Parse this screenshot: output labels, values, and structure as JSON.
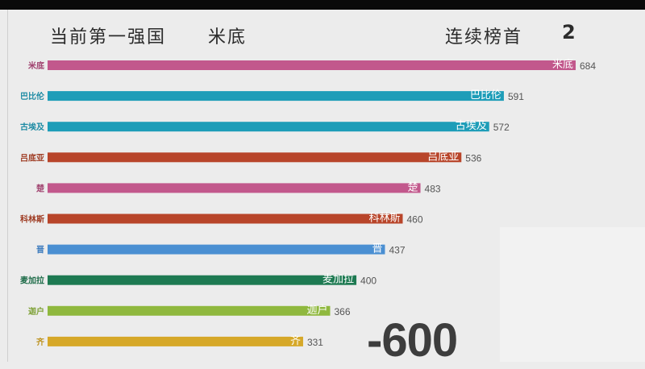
{
  "header": {
    "leader_label": "当前第一强国",
    "leader_name": "米底",
    "streak_label": "连续榜首",
    "streak_count": "2"
  },
  "year": "-600",
  "chart_data": {
    "type": "bar",
    "orientation": "horizontal",
    "categories": [
      "米底",
      "巴比伦",
      "古埃及",
      "吕底亚",
      "楚",
      "科林斯",
      "晋",
      "麦加拉",
      "迦户",
      "齐"
    ],
    "values": [
      684,
      591,
      572,
      536,
      483,
      460,
      437,
      400,
      366,
      331
    ],
    "colors": [
      "#c2588c",
      "#1e9db8",
      "#1e9db8",
      "#b8452a",
      "#c2588c",
      "#b8452a",
      "#4a8fd2",
      "#1e7a52",
      "#8fb83e",
      "#d6a829"
    ],
    "label_colors": [
      "#a0436f",
      "#1c8aa3",
      "#1c8aa3",
      "#9e3b22",
      "#a0436f",
      "#9e3b22",
      "#3d7bbd",
      "#1b6a46",
      "#7da035",
      "#bd921f"
    ],
    "value_color": "#555555",
    "inbar_label_color": "#ffffff"
  }
}
